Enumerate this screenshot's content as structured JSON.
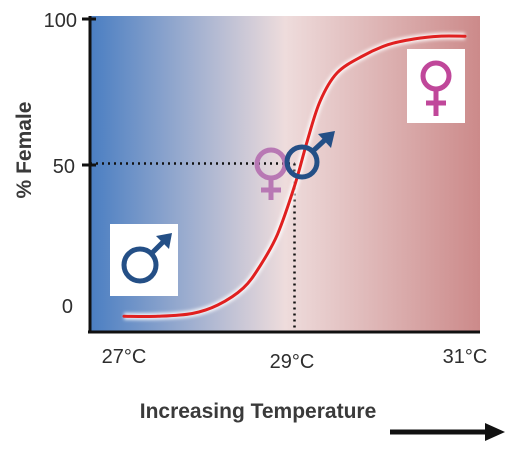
{
  "chart_data": {
    "type": "line",
    "xlabel": "Increasing Temperature",
    "ylabel": "% Female",
    "xlim": [
      27,
      31
    ],
    "ylim": [
      0,
      100
    ],
    "x_ticks": [
      "27°C",
      "29°C",
      "31°C"
    ],
    "y_ticks": [
      "0",
      "50",
      "100"
    ],
    "series": [
      {
        "color": "#e02020",
        "x": [
          27.0,
          27.4,
          27.8,
          28.1,
          28.4,
          28.6,
          28.8,
          29.0,
          29.15,
          29.3,
          29.5,
          29.8,
          30.1,
          30.4,
          30.7,
          31.0
        ],
        "y": [
          -4,
          -4,
          -3,
          0,
          6,
          14,
          25,
          42,
          58,
          72,
          82,
          88,
          92,
          94,
          95,
          95
        ]
      }
    ],
    "threshold": {
      "x": 29,
      "y": 50,
      "style": "dotted"
    },
    "background_gradient": [
      "#4a7ec2",
      "#eedcdc",
      "#cc8a8a"
    ],
    "icons": [
      "male-symbol",
      "female-male-symbols",
      "female-symbol"
    ],
    "icon_colors": {
      "male": "#244f86",
      "female": "#c0479a"
    },
    "arrow": "right"
  }
}
